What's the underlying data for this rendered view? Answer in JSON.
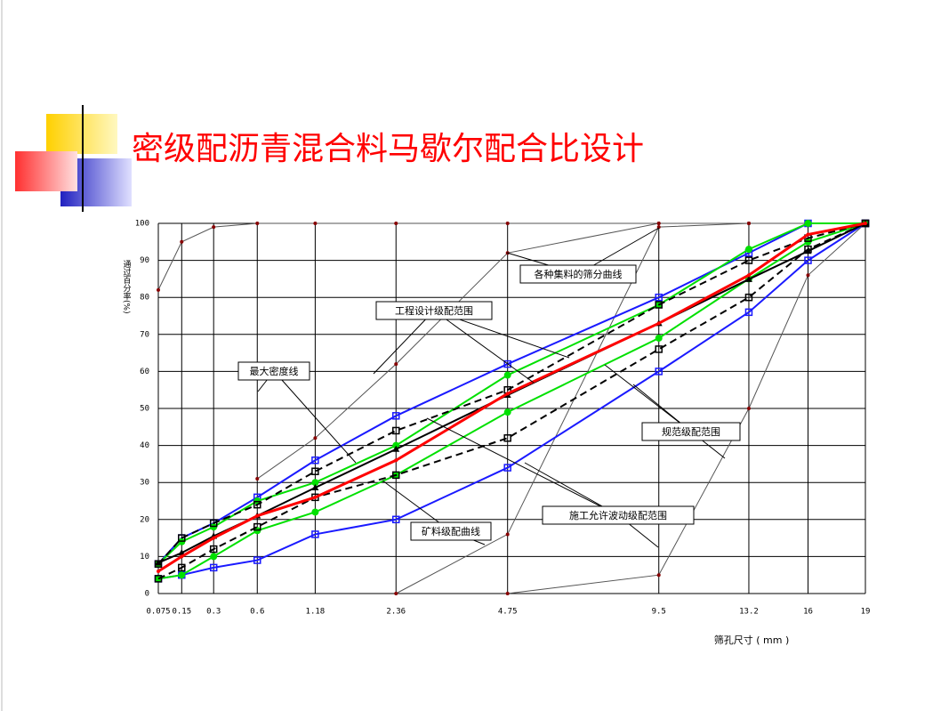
{
  "title": "密级配沥青混合料马歇尔配合比设计",
  "chart_data": {
    "type": "line",
    "y_label": "通过百分率(%)",
    "x_label": "筛孔尺寸 ( mm )",
    "x": [
      0.075,
      0.15,
      0.3,
      0.6,
      1.18,
      2.36,
      4.75,
      9.5,
      13.2,
      16,
      19
    ],
    "xlim": [
      0.075,
      19
    ],
    "xticks": [
      0.075,
      0.15,
      0.3,
      0.6,
      1.18,
      2.36,
      4.75,
      9.5,
      13.2,
      16,
      19
    ],
    "ylim": [
      0,
      100
    ],
    "yticks": [
      0,
      10,
      20,
      30,
      40,
      50,
      60,
      70,
      80,
      90,
      100
    ],
    "grid": true,
    "series": [
      {
        "color": "#555555",
        "marker": "dot",
        "values": [
          82,
          95,
          99,
          100,
          100,
          100,
          100,
          100,
          100,
          100,
          100
        ]
      },
      {
        "color": "#555555",
        "marker": "dot",
        "values": [
          null,
          null,
          null,
          31,
          42,
          62,
          92,
          100,
          100,
          100,
          100
        ]
      },
      {
        "color": "#555555",
        "marker": "dot",
        "values": [
          null,
          null,
          null,
          null,
          null,
          0,
          16,
          99,
          100,
          100,
          100
        ]
      },
      {
        "color": "#555555",
        "marker": "dot",
        "values": [
          null,
          null,
          null,
          null,
          null,
          null,
          0,
          5,
          50,
          86,
          100
        ]
      },
      {
        "color": "#1a1aff",
        "marker": "square",
        "values": [
          8,
          15,
          19,
          26,
          36,
          48,
          62,
          80,
          92,
          100,
          100
        ]
      },
      {
        "color": "#1a1aff",
        "marker": "square",
        "values": [
          4,
          5,
          7,
          9,
          16,
          20,
          34,
          60,
          76,
          90,
          100
        ]
      },
      {
        "color": "#00e000",
        "marker": "circle",
        "values": [
          8,
          14,
          18,
          25,
          30,
          40,
          59,
          78,
          93,
          100,
          100
        ]
      },
      {
        "color": "#00e000",
        "marker": "circle",
        "values": [
          4,
          5,
          10,
          17,
          22,
          32,
          49,
          69,
          85,
          95,
          100
        ]
      },
      {
        "color": "#000000",
        "marker": "square",
        "dash": true,
        "values": [
          8,
          15,
          19,
          24,
          33,
          44,
          55,
          78,
          90,
          96,
          100
        ]
      },
      {
        "color": "#000000",
        "marker": "square",
        "dash": true,
        "values": [
          4,
          7,
          12,
          18,
          26,
          32,
          42,
          66,
          80,
          93,
          100
        ]
      },
      {
        "color": "#000000",
        "marker": "triangle",
        "values": [
          8.3,
          11,
          15.5,
          21,
          28.6,
          39,
          53.6,
          73,
          84.9,
          92.5,
          100
        ]
      },
      {
        "color": "#ff0000",
        "marker": "dot",
        "width": 3,
        "values": [
          6,
          10,
          15,
          21,
          26,
          36,
          54,
          73,
          86,
          97,
          100
        ]
      }
    ],
    "annotations": [
      "各种集料的筛分曲线",
      "工程设计级配范围",
      "最大密度线",
      "规范级配范围",
      "施工允许波动级配范围",
      "矿料级配曲线"
    ]
  }
}
